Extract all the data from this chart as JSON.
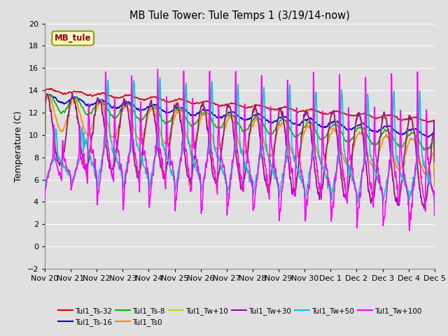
{
  "title": "MB Tule Tower: Tule Temps 1 (3/19/14-now)",
  "ylabel": "Temperature (C)",
  "ylim": [
    -2,
    20
  ],
  "yticks": [
    -2,
    0,
    2,
    4,
    6,
    8,
    10,
    12,
    14,
    16,
    18,
    20
  ],
  "series_labels": [
    "Tul1_Ts-32",
    "Tul1_Ts-16",
    "Tul1_Ts-8",
    "Tul1_Ts0",
    "Tul1_Tw+10",
    "Tul1_Tw+30",
    "Tul1_Tw+50",
    "Tul1_Tw+100"
  ],
  "series_colors": [
    "#dd0000",
    "#0000cc",
    "#00bb00",
    "#ff8800",
    "#cccc00",
    "#9900bb",
    "#00cccc",
    "#ff00ff"
  ],
  "xticklabels": [
    "Nov 20",
    "Nov 21",
    "Nov 22",
    "Nov 23",
    "Nov 24",
    "Nov 25",
    "Nov 26",
    "Nov 27",
    "Nov 28",
    "Nov 29",
    "Nov 30",
    "Dec 1",
    "Dec 2",
    "Dec 3",
    "Dec 4",
    "Dec 5"
  ],
  "bg_color": "#e0e0e0",
  "plot_bg_color": "#e0e0e0",
  "grid_color": "#ffffff",
  "mb_tule_color": "#990000",
  "mb_tule_bg": "#ffffcc",
  "mb_tule_edge": "#999900"
}
